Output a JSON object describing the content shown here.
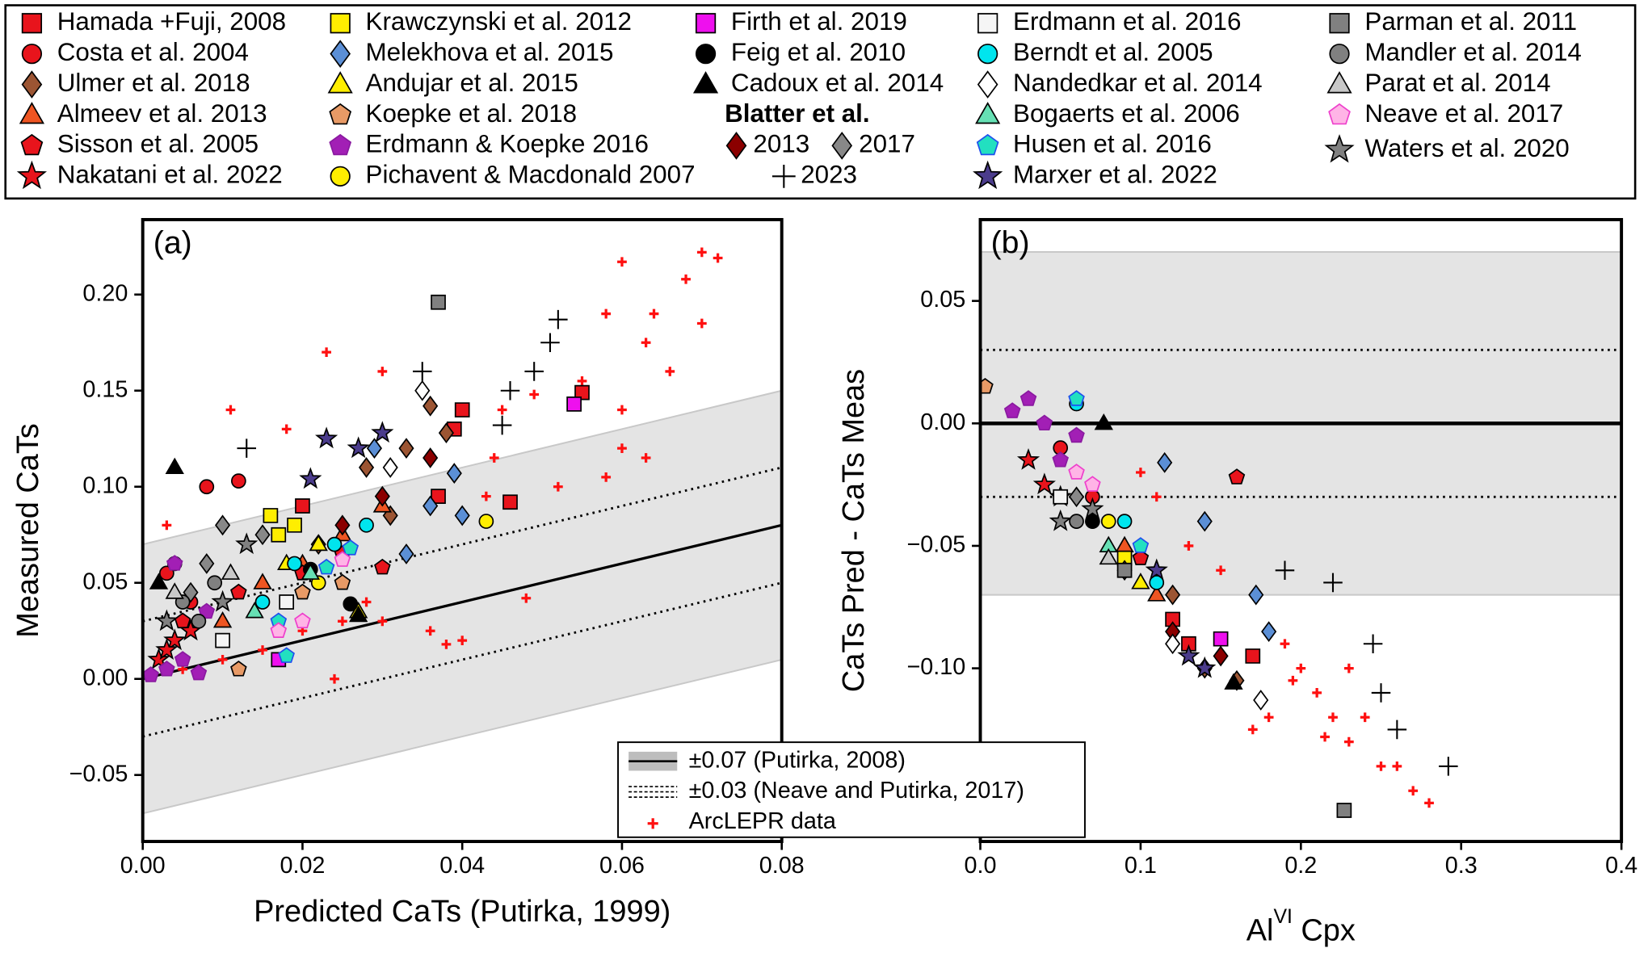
{
  "legend": {
    "group_title": "Blatter et al.",
    "entries": [
      {
        "name": "Hamada +Fuji, 2008",
        "marker": "square",
        "color": "#e8141c",
        "edge": "#000"
      },
      {
        "name": "Costa et al. 2004",
        "marker": "circle",
        "color": "#e8141c",
        "edge": "#000"
      },
      {
        "name": "Ulmer et al. 2018",
        "marker": "diamond",
        "color": "#9c5533",
        "edge": "#000"
      },
      {
        "name": "Almeev et al. 2013",
        "marker": "triangle",
        "color": "#ee5522",
        "edge": "#000"
      },
      {
        "name": "Sisson et al. 2005",
        "marker": "pentagon",
        "color": "#e8141c",
        "edge": "#000"
      },
      {
        "name": "Nakatani et al. 2022",
        "marker": "star",
        "color": "#e8141c",
        "edge": "#000"
      },
      {
        "name": "Krawczynski et al. 2012",
        "marker": "square",
        "color": "#ffee00",
        "edge": "#000"
      },
      {
        "name": "Melekhova et al. 2015",
        "marker": "diamond",
        "color": "#5b8fd6",
        "edge": "#000"
      },
      {
        "name": "Andujar et al. 2015",
        "marker": "triangle",
        "color": "#ffee00",
        "edge": "#000"
      },
      {
        "name": "Koepke et al. 2018",
        "marker": "pentagon",
        "color": "#e89a66",
        "edge": "#000"
      },
      {
        "name": "Erdmann & Koepke 2016",
        "marker": "pentagon",
        "color": "#a21fb5",
        "edge": "#8a1aa0"
      },
      {
        "name": "Pichavent & Macdonald 2007",
        "marker": "circle",
        "color": "#ffee00",
        "edge": "#000"
      },
      {
        "name": "Firth et al. 2019",
        "marker": "square",
        "color": "#ee10ee",
        "edge": "#000"
      },
      {
        "name": "Feig et al. 2010",
        "marker": "circle",
        "color": "#000000",
        "edge": "#000"
      },
      {
        "name": "Cadoux et al. 2014",
        "marker": "triangle",
        "color": "#000000",
        "edge": "#000"
      },
      {
        "name": "2013",
        "marker": "diamond",
        "color": "#8b0000",
        "edge": "#000"
      },
      {
        "name": "2017",
        "marker": "diamond",
        "color": "#888888",
        "edge": "#000"
      },
      {
        "name": "2023",
        "marker": "plus",
        "color": "#000000",
        "edge": "#000"
      },
      {
        "name": "Erdmann et al. 2016",
        "marker": "square",
        "color": "#f5f5f5",
        "edge": "#000"
      },
      {
        "name": "Berndt et al. 2005",
        "marker": "circle",
        "color": "#00e5ee",
        "edge": "#000"
      },
      {
        "name": "Nandedkar et al. 2014",
        "marker": "diamond",
        "color": "#ffffff",
        "edge": "#000"
      },
      {
        "name": "Bogaerts et al. 2006",
        "marker": "triangle",
        "color": "#66e0b4",
        "edge": "#000"
      },
      {
        "name": "Husen et al. 2016",
        "marker": "pentagon",
        "color": "#22e0c0",
        "edge": "#2050ee"
      },
      {
        "name": "Marxer et al. 2022",
        "marker": "star",
        "color": "#4b3c8c",
        "edge": "#000"
      },
      {
        "name": "Parman et al. 2011",
        "marker": "square",
        "color": "#808080",
        "edge": "#000"
      },
      {
        "name": "Mandler et al. 2014",
        "marker": "circle",
        "color": "#808080",
        "edge": "#000"
      },
      {
        "name": "Parat et al. 2014",
        "marker": "triangle",
        "color": "#c8c8c8",
        "edge": "#000"
      },
      {
        "name": "Neave et al. 2017",
        "marker": "pentagon",
        "color": "#ffb4e6",
        "edge": "#ee40cc"
      },
      {
        "name": "Waters et al. 2020",
        "marker": "star",
        "color": "#808080",
        "edge": "#000"
      }
    ]
  },
  "chart_data": [
    {
      "type": "scatter",
      "panel_label": "(a)",
      "xlabel": "Predicted CaTs (Putirka, 1999)",
      "ylabel": "Measured CaTs",
      "reference": "identity",
      "band": 0.07,
      "dotted": 0.03,
      "inner_legend": [
        "±0.07 (Putirka, 2008)",
        "±0.03 (Neave and Putirka, 2017)",
        "ArcLEPR data"
      ],
      "xlim": [
        0,
        0.08
      ],
      "ylim": [
        -0.0846,
        0.239
      ],
      "xticks": [
        {
          "value": 0,
          "label": "0.00"
        },
        0.02,
        0.04,
        0.06,
        {
          "value": 0.08,
          "label": "0.08"
        }
      ],
      "yticks": [
        {
          "value": -0.05,
          "label": "−0.05"
        },
        {
          "value": 0,
          "label": "0.00"
        },
        0.05,
        {
          "value": 0.1,
          "label": "0.10"
        },
        0.15,
        {
          "value": 0.2,
          "label": "0.20"
        }
      ],
      "arclepr": {
        "color": "#ff1010",
        "x": [
          0.06,
          0.07,
          0.072,
          0.068,
          0.064,
          0.063,
          0.066,
          0.07,
          0.058,
          0.055,
          0.049,
          0.06,
          0.06,
          0.063,
          0.058,
          0.044,
          0.043,
          0.048,
          0.04,
          0.038,
          0.036,
          0.03,
          0.028,
          0.025,
          0.02,
          0.015,
          0.01,
          0.005,
          0.003,
          0.011,
          0.018,
          0.023,
          0.03,
          0.045,
          0.052,
          0.024
        ],
        "values": [
          0.217,
          0.222,
          0.219,
          0.208,
          0.19,
          0.175,
          0.16,
          0.185,
          0.19,
          0.155,
          0.148,
          0.14,
          0.12,
          0.115,
          0.105,
          0.115,
          0.095,
          0.042,
          0.02,
          0.018,
          0.025,
          0.03,
          0.04,
          0.03,
          0.025,
          0.015,
          0.01,
          0.005,
          0.08,
          0.14,
          0.13,
          0.17,
          0.16,
          0.14,
          0.1,
          0.0
        ]
      },
      "series": [
        {
          "x": [
            0.04,
            0.046,
            0.037,
            0.055,
            0.039,
            0.02
          ],
          "values": [
            0.14,
            0.092,
            0.095,
            0.149,
            0.13,
            0.09
          ]
        },
        {
          "x": [
            0.003,
            0.004,
            0.008,
            0.006,
            0.012
          ],
          "values": [
            0.055,
            0.06,
            0.1,
            0.04,
            0.103
          ]
        },
        {
          "x": [
            0.036,
            0.038,
            0.033,
            0.031,
            0.028,
            0.022
          ],
          "values": [
            0.142,
            0.128,
            0.12,
            0.085,
            0.11,
            0.07
          ]
        },
        {
          "x": [
            0.015,
            0.02,
            0.025,
            0.03,
            0.01
          ],
          "values": [
            0.05,
            0.06,
            0.075,
            0.09,
            0.03
          ]
        },
        {
          "x": [
            0.005,
            0.012,
            0.02,
            0.025,
            0.03
          ],
          "values": [
            0.03,
            0.045,
            0.055,
            0.065,
            0.058
          ]
        },
        {
          "x": [
            0.002,
            0.004,
            0.006,
            0.003
          ],
          "values": [
            0.01,
            0.02,
            0.025,
            0.015
          ]
        },
        {
          "x": [
            0.016,
            0.019,
            0.017
          ],
          "values": [
            0.085,
            0.08,
            0.075
          ]
        },
        {
          "x": [
            0.036,
            0.04,
            0.039,
            0.033,
            0.029
          ],
          "values": [
            0.09,
            0.085,
            0.107,
            0.065,
            0.12
          ]
        },
        {
          "x": [
            0.018,
            0.022,
            0.027
          ],
          "values": [
            0.06,
            0.07,
            0.035
          ]
        },
        {
          "x": [
            0.012,
            0.02,
            0.025
          ],
          "values": [
            0.005,
            0.045,
            0.05
          ]
        },
        {
          "x": [
            0.001,
            0.003,
            0.005,
            0.007,
            0.004,
            0.008
          ],
          "values": [
            0.002,
            0.005,
            0.01,
            0.003,
            0.06,
            0.035
          ]
        },
        {
          "x": [
            0.043,
            0.022
          ],
          "values": [
            0.082,
            0.05
          ]
        },
        {
          "x": [
            0.054,
            0.017
          ],
          "values": [
            0.143,
            0.01
          ]
        },
        {
          "x": [
            0.026,
            0.021
          ],
          "values": [
            0.039,
            0.057
          ]
        },
        {
          "x": [
            0.004,
            0.002,
            0.027
          ],
          "values": [
            0.11,
            0.05,
            0.033
          ]
        },
        {
          "x": [
            0.036,
            0.03,
            0.025
          ],
          "values": [
            0.115,
            0.095,
            0.08
          ]
        },
        {
          "x": [
            0.01,
            0.008,
            0.015,
            0.006
          ],
          "values": [
            0.08,
            0.06,
            0.075,
            0.045
          ]
        },
        {
          "x": [
            0.052,
            0.051,
            0.049,
            0.046,
            0.035,
            0.013,
            0.045
          ],
          "values": [
            0.187,
            0.175,
            0.16,
            0.15,
            0.16,
            0.12,
            0.132
          ]
        },
        {
          "x": [
            0.018,
            0.01
          ],
          "values": [
            0.04,
            0.02
          ]
        },
        {
          "x": [
            0.019,
            0.024,
            0.015,
            0.028
          ],
          "values": [
            0.06,
            0.07,
            0.04,
            0.08
          ]
        },
        {
          "x": [
            0.035,
            0.031
          ],
          "values": [
            0.15,
            0.11
          ]
        },
        {
          "x": [
            0.021,
            0.014
          ],
          "values": [
            0.055,
            0.035
          ]
        },
        {
          "x": [
            0.017,
            0.023,
            0.026,
            0.018
          ],
          "values": [
            0.03,
            0.058,
            0.068,
            0.012
          ]
        },
        {
          "x": [
            0.023,
            0.027,
            0.021,
            0.03
          ],
          "values": [
            0.125,
            0.12,
            0.104,
            0.128
          ]
        },
        {
          "x": [
            0.037
          ],
          "values": [
            0.196
          ]
        },
        {
          "x": [
            0.005,
            0.009,
            0.007
          ],
          "values": [
            0.04,
            0.05,
            0.03
          ]
        },
        {
          "x": [
            0.004,
            0.011
          ],
          "values": [
            0.045,
            0.055
          ]
        },
        {
          "x": [
            0.017,
            0.02,
            0.025
          ],
          "values": [
            0.025,
            0.03,
            0.062
          ]
        },
        {
          "x": [
            0.003,
            0.013,
            0.01
          ],
          "values": [
            0.03,
            0.07,
            0.04
          ]
        }
      ]
    },
    {
      "type": "scatter",
      "panel_label": "(b)",
      "xlabel": [
        "Al",
        "VI",
        "Cpx"
      ],
      "ylabel": "CaTs Pred - CaTs Meas",
      "reference": "zero",
      "band": 0.07,
      "dotted": 0.03,
      "xlim": [
        0,
        0.4
      ],
      "ylim": [
        -0.1707,
        0.0832
      ],
      "xticks": [
        {
          "value": 0,
          "label": "0.0"
        },
        0.1,
        0.2,
        0.3,
        0.4
      ],
      "yticks": [
        {
          "value": -0.1,
          "label": "−0.10"
        },
        {
          "value": -0.05,
          "label": "−0.05"
        },
        {
          "value": 0,
          "label": "0.00"
        },
        0.05
      ],
      "arclepr": {
        "color": "#ff1010",
        "x": [
          0.2,
          0.21,
          0.22,
          0.23,
          0.25,
          0.27,
          0.28,
          0.18,
          0.17,
          0.24,
          0.23,
          0.19,
          0.15,
          0.13,
          0.11,
          0.1,
          0.26,
          0.215,
          0.195
        ],
        "values": [
          -0.1,
          -0.11,
          -0.12,
          -0.13,
          -0.14,
          -0.15,
          -0.155,
          -0.12,
          -0.125,
          -0.12,
          -0.1,
          -0.09,
          -0.06,
          -0.05,
          -0.03,
          -0.02,
          -0.14,
          -0.128,
          -0.105
        ]
      },
      "series": [
        {
          "x": [
            0.13,
            0.17,
            0.12
          ],
          "values": [
            -0.09,
            -0.095,
            -0.08
          ]
        },
        {
          "x": [
            0.05,
            0.07
          ],
          "values": [
            -0.01,
            -0.03
          ]
        },
        {
          "x": [
            0.14,
            0.16,
            0.12
          ],
          "values": [
            -0.1,
            -0.105,
            -0.07
          ]
        },
        {
          "x": [
            0.09,
            0.11
          ],
          "values": [
            -0.05,
            -0.07
          ]
        },
        {
          "x": [
            0.16,
            0.1
          ],
          "values": [
            -0.022,
            -0.055
          ]
        },
        {
          "x": [
            0.03,
            0.04,
            0.05
          ],
          "values": [
            -0.015,
            -0.025,
            -0.03
          ]
        },
        {
          "x": [
            0.09
          ],
          "values": [
            -0.055
          ]
        },
        {
          "x": [
            0.115,
            0.14,
            0.172,
            0.18
          ],
          "values": [
            -0.016,
            -0.04,
            -0.07,
            -0.085
          ]
        },
        {
          "x": [
            0.1
          ],
          "values": [
            -0.065
          ]
        },
        {
          "x": [
            0.003
          ],
          "values": [
            0.015
          ]
        },
        {
          "x": [
            0.02,
            0.04,
            0.06,
            0.03,
            0.05
          ],
          "values": [
            0.005,
            0.0,
            -0.005,
            0.01,
            -0.015
          ]
        },
        {
          "x": [
            0.08
          ],
          "values": [
            -0.04
          ]
        },
        {
          "x": [
            0.15
          ],
          "values": [
            -0.088
          ]
        },
        {
          "x": [
            0.07
          ],
          "values": [
            -0.04
          ]
        },
        {
          "x": [
            0.077,
            0.158
          ],
          "values": [
            0.0,
            -0.106
          ]
        },
        {
          "x": [
            0.12,
            0.15
          ],
          "values": [
            -0.085,
            -0.095
          ]
        },
        {
          "x": [
            0.06,
            0.09
          ],
          "values": [
            -0.03,
            -0.06
          ]
        },
        {
          "x": [
            0.22,
            0.245,
            0.25,
            0.292,
            0.26,
            0.19
          ],
          "values": [
            -0.065,
            -0.09,
            -0.11,
            -0.14,
            -0.125,
            -0.06
          ]
        },
        {
          "x": [
            0.05
          ],
          "values": [
            -0.03
          ]
        },
        {
          "x": [
            0.06,
            0.09,
            0.11
          ],
          "values": [
            0.008,
            -0.04,
            -0.065
          ]
        },
        {
          "x": [
            0.175,
            0.12
          ],
          "values": [
            -0.113,
            -0.09
          ]
        },
        {
          "x": [
            0.08
          ],
          "values": [
            -0.05
          ]
        },
        {
          "x": [
            0.06,
            0.1
          ],
          "values": [
            0.01,
            -0.05
          ]
        },
        {
          "x": [
            0.13,
            0.14,
            0.11
          ],
          "values": [
            -0.095,
            -0.1,
            -0.06
          ]
        },
        {
          "x": [
            0.227,
            0.09
          ],
          "values": [
            -0.158,
            -0.06
          ]
        },
        {
          "x": [
            0.06
          ],
          "values": [
            -0.04
          ]
        },
        {
          "x": [
            0.08
          ],
          "values": [
            -0.055
          ]
        },
        {
          "x": [
            0.07,
            0.06
          ],
          "values": [
            -0.025,
            -0.02
          ]
        },
        {
          "x": [
            0.07,
            0.05
          ],
          "values": [
            -0.035,
            -0.04
          ]
        }
      ]
    }
  ]
}
